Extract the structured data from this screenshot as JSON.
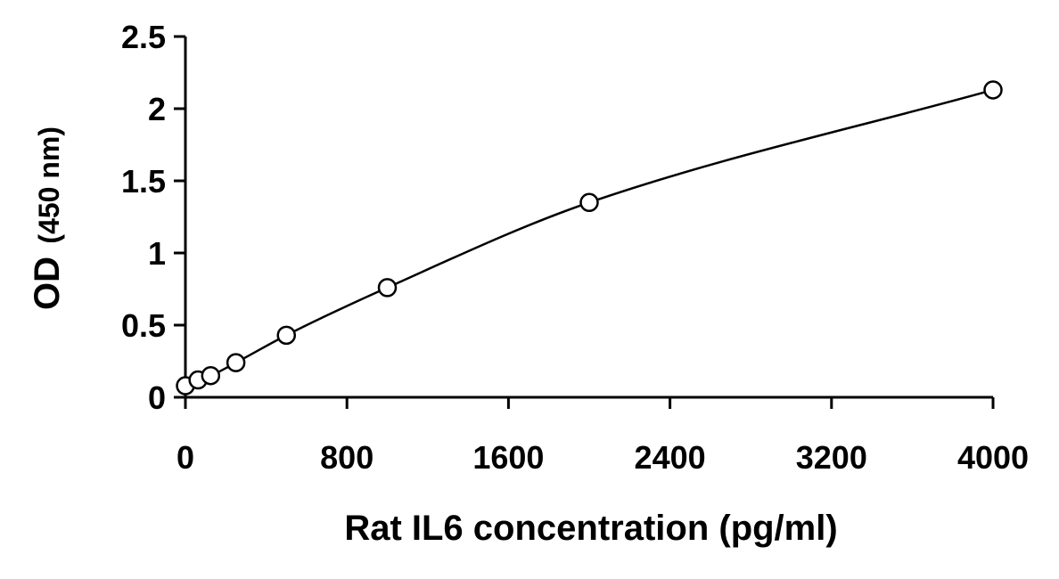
{
  "chart_data": {
    "type": "scatter",
    "title": "",
    "xlabel": "Rat IL6 concentration (pg/ml)",
    "ylabel_main": "OD",
    "ylabel_unit": "(450 nm)",
    "xlim": [
      0,
      4000
    ],
    "ylim": [
      0,
      2.5
    ],
    "x_ticks": [
      0,
      800,
      1600,
      2400,
      3200,
      4000
    ],
    "y_ticks": [
      0,
      0.5,
      1,
      1.5,
      2,
      2.5
    ],
    "y_tick_labels": [
      "0",
      "0.5",
      "1",
      "1.5",
      "2",
      "2.5"
    ],
    "grid": false,
    "legend": "none",
    "fit": "smooth curve through points",
    "series": [
      {
        "x": [
          0,
          62.5,
          125,
          250,
          500,
          1000,
          2000,
          4000
        ],
        "y": [
          0.08,
          0.12,
          0.15,
          0.24,
          0.43,
          0.76,
          1.35,
          2.13
        ]
      }
    ]
  }
}
